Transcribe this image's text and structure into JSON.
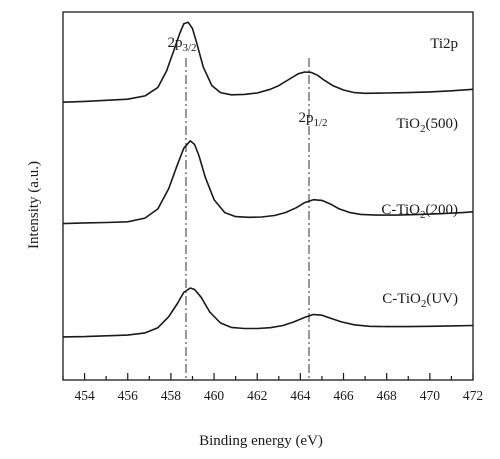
{
  "chart_data": {
    "type": "line",
    "xlabel": "Binding energy (eV)",
    "ylabel": "Intensity (a.u.)",
    "panel_label": "Ti2p",
    "xlim": [
      453,
      472
    ],
    "ylim": [
      0,
      1
    ],
    "x_ticks": [
      454,
      456,
      458,
      460,
      462,
      464,
      466,
      468,
      470,
      472
    ],
    "y_ticks_shown": false,
    "grid": false,
    "peak_labels": [
      {
        "main": "2p",
        "sub": "3/2",
        "x": 458.7
      },
      {
        "main": "2p",
        "sub": "1/2",
        "x": 464.4
      }
    ],
    "reference_lines_x": [
      458.7,
      464.4
    ],
    "series": [
      {
        "name_main": "TiO",
        "name_sub": "2",
        "name_suffix": "(500)",
        "x": [
          453,
          454,
          455,
          456,
          456.8,
          457.4,
          457.8,
          458.1,
          458.4,
          458.6,
          458.8,
          459.0,
          459.2,
          459.5,
          459.9,
          460.3,
          460.8,
          461.4,
          462.0,
          462.6,
          463.0,
          463.5,
          463.9,
          464.2,
          464.5,
          464.8,
          465.1,
          465.5,
          466.0,
          466.5,
          467.0,
          468.0,
          469.0,
          470.0,
          471.0,
          472.0
        ],
        "y": [
          0.755,
          0.757,
          0.76,
          0.763,
          0.772,
          0.795,
          0.84,
          0.89,
          0.94,
          0.968,
          0.972,
          0.955,
          0.915,
          0.85,
          0.8,
          0.781,
          0.775,
          0.776,
          0.78,
          0.79,
          0.8,
          0.818,
          0.832,
          0.837,
          0.836,
          0.828,
          0.815,
          0.8,
          0.788,
          0.781,
          0.779,
          0.78,
          0.781,
          0.783,
          0.786,
          0.79
        ]
      },
      {
        "name_main": "C-TiO",
        "name_sub": "2",
        "name_suffix": "(200)",
        "x": [
          453,
          454,
          455,
          456,
          456.8,
          457.4,
          457.9,
          458.3,
          458.6,
          458.9,
          459.1,
          459.3,
          459.6,
          460.0,
          460.5,
          461.0,
          461.6,
          462.2,
          462.8,
          463.3,
          463.8,
          464.2,
          464.6,
          465.0,
          465.4,
          465.8,
          466.3,
          466.8,
          467.5,
          468.5,
          469.5,
          470.5,
          471.5,
          472.0
        ],
        "y": [
          0.425,
          0.427,
          0.428,
          0.43,
          0.44,
          0.465,
          0.52,
          0.585,
          0.63,
          0.65,
          0.64,
          0.61,
          0.55,
          0.49,
          0.455,
          0.444,
          0.442,
          0.443,
          0.447,
          0.455,
          0.468,
          0.482,
          0.49,
          0.488,
          0.478,
          0.465,
          0.455,
          0.45,
          0.448,
          0.448,
          0.45,
          0.452,
          0.455,
          0.457
        ]
      },
      {
        "name_main": "C-TiO",
        "name_sub": "2",
        "name_suffix": "(UV)",
        "x": [
          453,
          454,
          455,
          456,
          456.8,
          457.4,
          457.9,
          458.3,
          458.6,
          458.9,
          459.1,
          459.4,
          459.8,
          460.3,
          460.8,
          461.4,
          462.0,
          462.6,
          463.2,
          463.7,
          464.2,
          464.6,
          465.0,
          465.4,
          465.9,
          466.5,
          467.2,
          468.0,
          469.0,
          470.0,
          471.0,
          472.0
        ],
        "y": [
          0.117,
          0.118,
          0.12,
          0.122,
          0.128,
          0.142,
          0.172,
          0.208,
          0.238,
          0.25,
          0.246,
          0.225,
          0.185,
          0.155,
          0.143,
          0.14,
          0.14,
          0.142,
          0.148,
          0.158,
          0.17,
          0.178,
          0.176,
          0.168,
          0.158,
          0.15,
          0.146,
          0.145,
          0.145,
          0.146,
          0.147,
          0.148
        ]
      }
    ]
  }
}
